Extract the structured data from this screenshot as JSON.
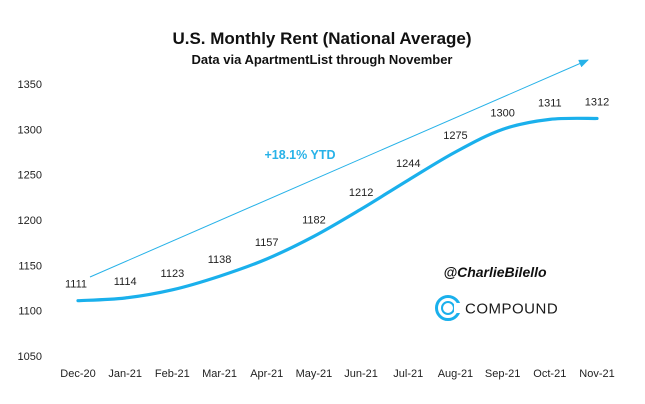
{
  "chart_data": {
    "type": "line",
    "title": "U.S. Monthly Rent (National Average)",
    "subtitle": "Data via ApartmentList through November",
    "categories": [
      "Dec-20",
      "Jan-21",
      "Feb-21",
      "Mar-21",
      "Apr-21",
      "May-21",
      "Jun-21",
      "Jul-21",
      "Aug-21",
      "Sep-21",
      "Oct-21",
      "Nov-21"
    ],
    "series": [
      {
        "values": [
          1111,
          1114,
          1123,
          1138,
          1157,
          1182,
          1212,
          1244,
          1275,
          1300,
          1311,
          1312
        ]
      }
    ],
    "data_labels": [
      "1111",
      "1114",
      "1123",
      "1138",
      "1157",
      "1182",
      "1212",
      "1244",
      "1275",
      "1300",
      "1311",
      "1312"
    ],
    "ylim": [
      1050,
      1350
    ],
    "yticks": [
      "1050",
      "1100",
      "1150",
      "1200",
      "1250",
      "1300",
      "1350"
    ],
    "grid": false,
    "annotation": "+18.1% YTD",
    "line_color": "#1ab0ec"
  },
  "branding": {
    "handle": "@CharlieBilello",
    "company": "COMPOUND",
    "logo_icon": "compound-logo-icon",
    "logo_color": "#1ab0ec"
  }
}
